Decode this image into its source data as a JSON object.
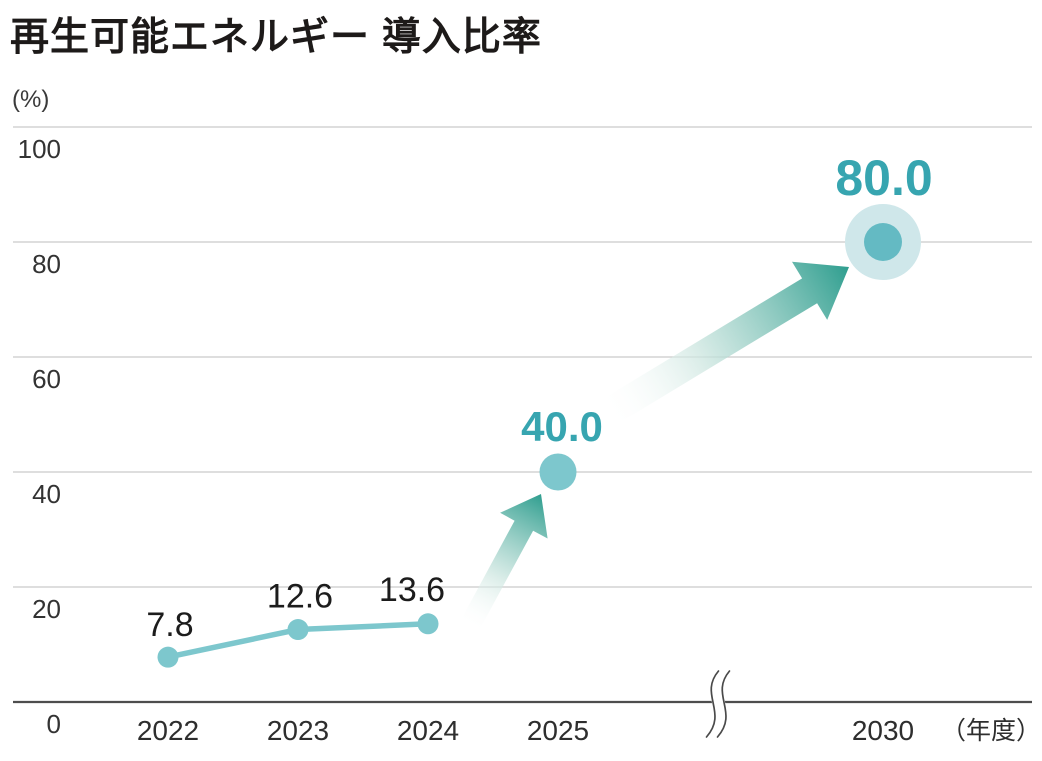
{
  "chart_data": {
    "type": "line",
    "title": "再生可能エネルギー 導入比率",
    "y_unit": "(%)",
    "x_unit": "（年度）",
    "categories": [
      "2022",
      "2023",
      "2024",
      "2025",
      "2030"
    ],
    "series": [
      {
        "name": "導入比率",
        "values": [
          7.8,
          12.6,
          13.6,
          40.0,
          80.0
        ]
      }
    ],
    "points": [
      {
        "category": "2022",
        "value": 7.8,
        "label": "7.8",
        "style": "actual"
      },
      {
        "category": "2023",
        "value": 12.6,
        "label": "12.6",
        "style": "actual"
      },
      {
        "category": "2024",
        "value": 13.6,
        "label": "13.6",
        "style": "actual"
      },
      {
        "category": "2025",
        "value": 40.0,
        "label": "40.0",
        "style": "target"
      },
      {
        "category": "2030",
        "value": 80.0,
        "label": "80.0",
        "style": "target-highlight"
      }
    ],
    "arrows": [
      {
        "from": "2024",
        "to": "2025"
      },
      {
        "from": "2025",
        "to": "2030"
      }
    ],
    "yticks": [
      0,
      20,
      40,
      60,
      80,
      100
    ],
    "ylim": [
      0,
      100
    ],
    "grid": true,
    "legend": "none",
    "axis_break_between": [
      "2025",
      "2030"
    ],
    "colors": {
      "line": "#7dc7cd",
      "dot": "#7dc7cd",
      "dot_highlight": "#64bac3",
      "halo": "#cfe7ea",
      "arrow": "#2f9e8f",
      "accent_text": "#37a5b0",
      "value_text": "#1c1c1c",
      "tick_text": "#333333",
      "grid": "#c9c9c9",
      "axis": "#4d4d4d"
    }
  }
}
